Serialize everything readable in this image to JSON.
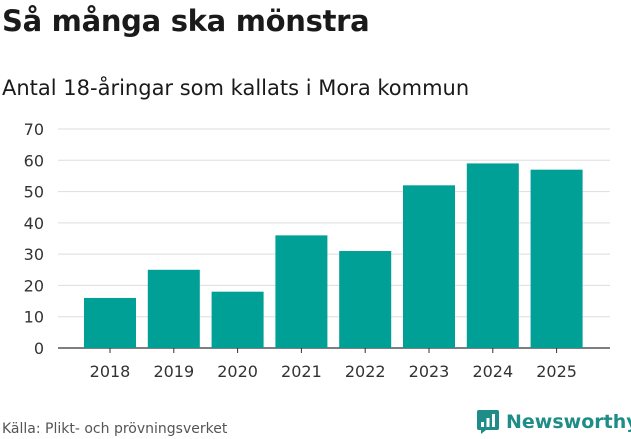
{
  "header": {
    "title": "Så många ska mönstra"
  },
  "chart_data": {
    "type": "bar",
    "title": "Så många ska mönstra",
    "subtitle": "Antal 18-åringar som kallats i Mora kommun",
    "xlabel": "",
    "ylabel": "",
    "categories": [
      "2018",
      "2019",
      "2020",
      "2021",
      "2022",
      "2023",
      "2024",
      "2025"
    ],
    "values": [
      16,
      25,
      18,
      36,
      31,
      52,
      59,
      57
    ],
    "ylim": [
      0,
      70
    ],
    "yticks": [
      0,
      10,
      20,
      30,
      40,
      50,
      60,
      70
    ],
    "grid": true,
    "bar_color": "#00a096"
  },
  "footer": {
    "source": "Källa: Plikt- och prövningsverket",
    "brand": "Newsworthy",
    "brand_color": "#1e8c87"
  }
}
